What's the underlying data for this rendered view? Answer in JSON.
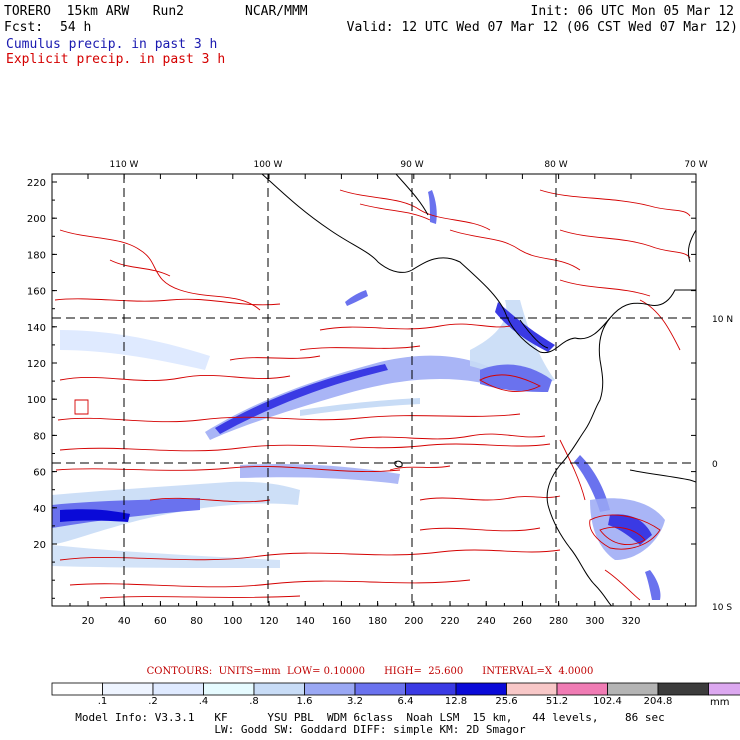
{
  "header": {
    "model": "TORERO  15km ARW   Run2",
    "org": "NCAR/MMM",
    "init": "Init: 06 UTC Mon 05 Mar 12",
    "fcst_label": "Fcst:",
    "fcst_value": "54 h",
    "valid": "Valid: 12 UTC Wed 07 Mar 12 (06 CST Wed 07 Mar 12)"
  },
  "legend": {
    "cumulus": "Cumulus precip. in past 3 h",
    "explicit": "Explicit precip. in past 3 h",
    "cumulus_color": "#1a1ab0",
    "explicit_color": "#d40000"
  },
  "map": {
    "top_lon_labels": [
      "110 W",
      "100 W",
      "90 W",
      "80 W",
      "70 W"
    ],
    "right_lat_labels": [
      "10 N",
      "0",
      "10 S"
    ],
    "left_y_ticks": [
      "220",
      "200",
      "180",
      "160",
      "140",
      "120",
      "100",
      "80",
      "60",
      "40",
      "20"
    ],
    "bottom_x_ticks": [
      "20",
      "40",
      "60",
      "80",
      "100",
      "120",
      "140",
      "160",
      "180",
      "200",
      "220",
      "240",
      "260",
      "280",
      "300",
      "320"
    ]
  },
  "contours_line": "CONTOURS:  UNITS=mm  LOW= 0.10000      HIGH=  25.600      INTERVAL=X  4.0000",
  "colorbar": {
    "colors": [
      "#ffffff",
      "#eef4ff",
      "#dfeaff",
      "#e6fbff",
      "#c8dcf6",
      "#9aa8f4",
      "#6a72ee",
      "#3a3ae4",
      "#0a0ad8",
      "#f8c8c8",
      "#f07cb4",
      "#b4b4b4",
      "#3c3c3c",
      "#dca8f0"
    ],
    "labels": [
      ".1",
      ".2",
      ".4",
      ".8",
      "1.6",
      "3.2",
      "6.4",
      "12.8",
      "25.6",
      "51.2",
      "102.4",
      "204.8"
    ],
    "unit": "mm"
  },
  "model_info": {
    "line1": "Model Info: V3.3.1   KF      YSU PBL  WDM 6class  Noah LSM  15 km,   44 levels,    86 sec",
    "line2": "LW: Godd SW: Goddard DIFF: simple KM: 2D Smagor"
  }
}
